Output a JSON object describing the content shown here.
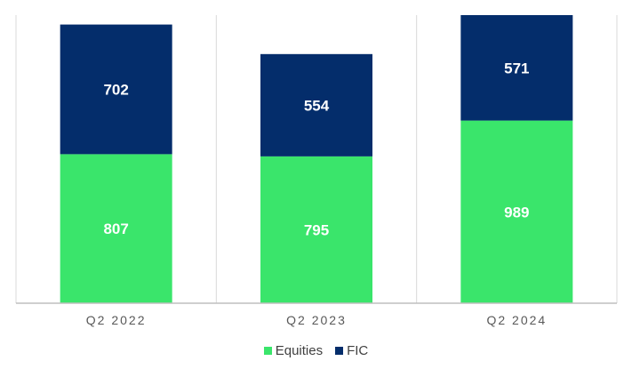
{
  "chart_data": {
    "type": "bar",
    "stacked": true,
    "categories": [
      "Q2 2022",
      "Q2 2023",
      "Q2 2024"
    ],
    "series": [
      {
        "name": "Equities",
        "values": [
          807,
          795,
          989
        ],
        "color": "#3ae56b"
      },
      {
        "name": "FIC",
        "values": [
          702,
          554,
          571
        ],
        "color": "#042d6b"
      }
    ],
    "title": "",
    "xlabel": "",
    "ylabel": "",
    "ylim": [
      0,
      1560
    ],
    "grid": false,
    "legend": "bottom"
  },
  "colors": {
    "divider": "#d9d9d9",
    "axis": "#bfbfbf",
    "label_text": "#ffffff",
    "tick_text": "#595959"
  }
}
